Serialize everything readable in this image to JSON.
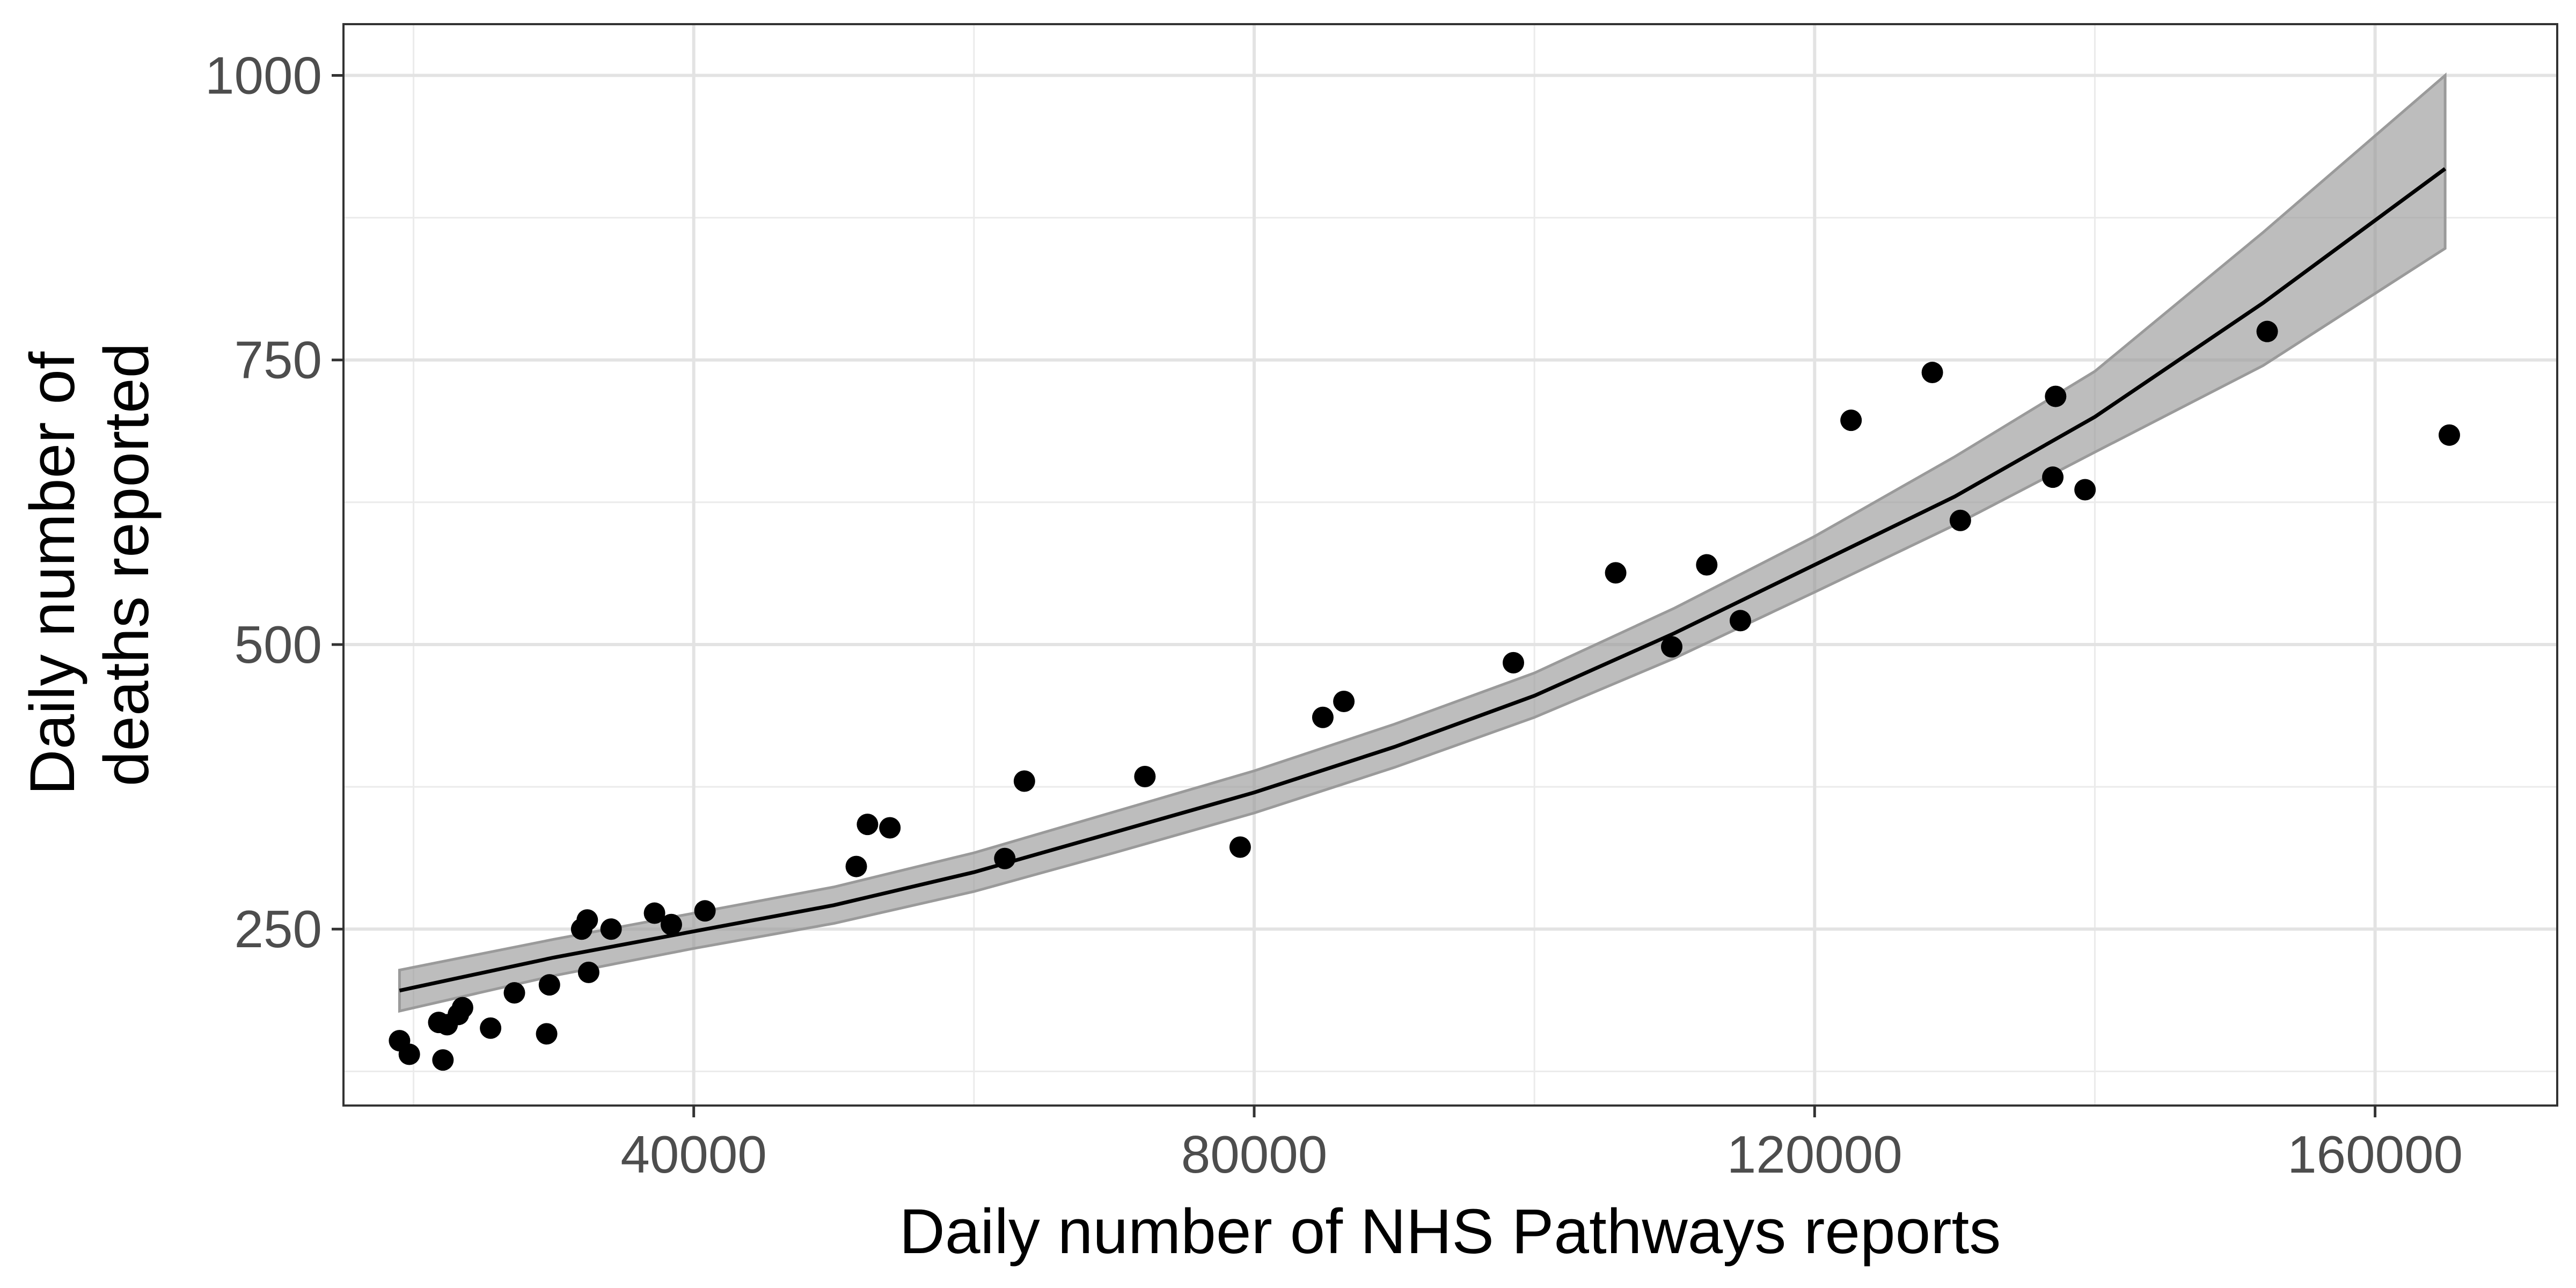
{
  "chart_data": {
    "type": "scatter",
    "xlabel": "Daily number of NHS Pathways reports",
    "ylabel": [
      "Daily number of",
      "deaths reported"
    ],
    "xlim": [
      15000,
      173000
    ],
    "ylim": [
      95,
      1045
    ],
    "x_ticks": [
      40000,
      80000,
      120000,
      160000
    ],
    "y_ticks": [
      250,
      500,
      750,
      1000
    ],
    "x_minor": [
      20000,
      60000,
      100000,
      140000
    ],
    "y_minor": [
      125,
      375,
      625,
      875
    ],
    "grid": true,
    "legend": "none",
    "points": [
      {
        "x": 19000,
        "y": 152
      },
      {
        "x": 19700,
        "y": 140
      },
      {
        "x": 21800,
        "y": 168
      },
      {
        "x": 22100,
        "y": 135
      },
      {
        "x": 22400,
        "y": 166
      },
      {
        "x": 23200,
        "y": 175
      },
      {
        "x": 23500,
        "y": 181
      },
      {
        "x": 25500,
        "y": 163
      },
      {
        "x": 27200,
        "y": 194
      },
      {
        "x": 29500,
        "y": 158
      },
      {
        "x": 29700,
        "y": 201
      },
      {
        "x": 32000,
        "y": 250
      },
      {
        "x": 32400,
        "y": 258
      },
      {
        "x": 32500,
        "y": 212
      },
      {
        "x": 34100,
        "y": 250
      },
      {
        "x": 37200,
        "y": 264
      },
      {
        "x": 38400,
        "y": 254
      },
      {
        "x": 40800,
        "y": 266
      },
      {
        "x": 51600,
        "y": 305
      },
      {
        "x": 52400,
        "y": 342
      },
      {
        "x": 54000,
        "y": 339
      },
      {
        "x": 62200,
        "y": 312
      },
      {
        "x": 63600,
        "y": 380
      },
      {
        "x": 72200,
        "y": 384
      },
      {
        "x": 79000,
        "y": 322
      },
      {
        "x": 84900,
        "y": 436
      },
      {
        "x": 86400,
        "y": 450
      },
      {
        "x": 98500,
        "y": 484
      },
      {
        "x": 105800,
        "y": 563
      },
      {
        "x": 109800,
        "y": 498
      },
      {
        "x": 112300,
        "y": 570
      },
      {
        "x": 114700,
        "y": 521
      },
      {
        "x": 122600,
        "y": 697
      },
      {
        "x": 128400,
        "y": 739
      },
      {
        "x": 130400,
        "y": 609
      },
      {
        "x": 137000,
        "y": 647
      },
      {
        "x": 137200,
        "y": 718
      },
      {
        "x": 139300,
        "y": 636
      },
      {
        "x": 152300,
        "y": 775
      },
      {
        "x": 165300,
        "y": 684
      }
    ],
    "fit_line": {
      "x": [
        19000,
        30000,
        40000,
        50000,
        60000,
        70000,
        80000,
        90000,
        100000,
        110000,
        120000,
        130000,
        140000,
        152000,
        165000
      ],
      "y": [
        196,
        225,
        248,
        271,
        300,
        335,
        370,
        410,
        455,
        510,
        570,
        630,
        700,
        800,
        918
      ],
      "ci_lower": [
        178,
        209,
        233,
        255,
        283,
        317,
        352,
        392,
        436,
        488,
        546,
        605,
        669,
        745,
        848
      ],
      "ci_upper": [
        214,
        241,
        264,
        287,
        317,
        353,
        389,
        430,
        475,
        532,
        595,
        665,
        740,
        862,
        1000
      ]
    }
  }
}
